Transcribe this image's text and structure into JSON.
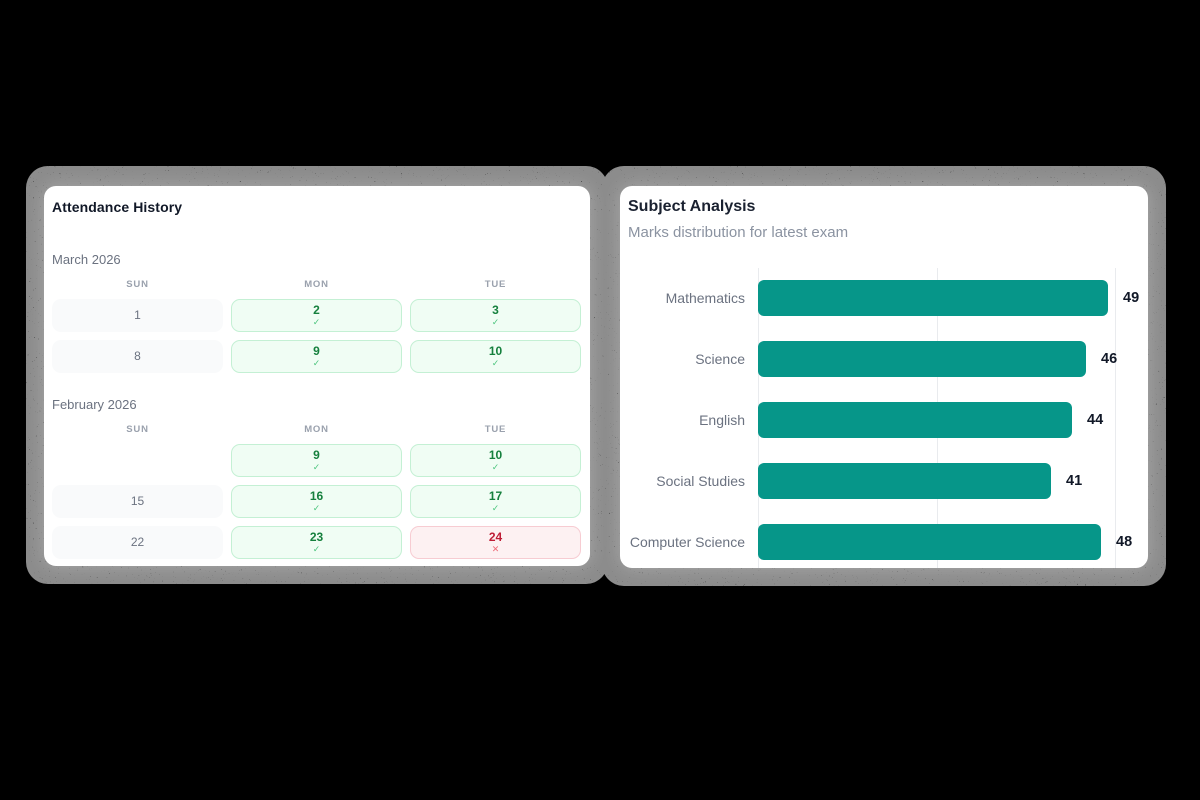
{
  "canvas": {
    "background": "#000000"
  },
  "attendance": {
    "title": "Attendance History",
    "day_headers": [
      "SUN",
      "MON",
      "TUE"
    ],
    "status_icons": {
      "present": "✓",
      "absent": "✕"
    },
    "months": [
      {
        "label": "March 2026",
        "rows": [
          [
            {
              "day": "1",
              "status": "off"
            },
            {
              "day": "2",
              "status": "present"
            },
            {
              "day": "3",
              "status": "present"
            }
          ],
          [
            {
              "day": "8",
              "status": "off"
            },
            {
              "day": "9",
              "status": "present"
            },
            {
              "day": "10",
              "status": "present"
            }
          ]
        ]
      },
      {
        "label": "February 2026",
        "rows": [
          [
            {
              "day": "",
              "status": "empty"
            },
            {
              "day": "9",
              "status": "present"
            },
            {
              "day": "10",
              "status": "present"
            }
          ],
          [
            {
              "day": "15",
              "status": "off"
            },
            {
              "day": "16",
              "status": "present"
            },
            {
              "day": "17",
              "status": "present"
            }
          ],
          [
            {
              "day": "22",
              "status": "off"
            },
            {
              "day": "23",
              "status": "present"
            },
            {
              "day": "24",
              "status": "absent"
            }
          ]
        ]
      }
    ],
    "colors": {
      "off_bg": "#f9fafb",
      "off_text": "#6b7280",
      "present_bg": "#f0fdf4",
      "present_border": "#c4f0d4",
      "present_text": "#15803d",
      "present_check": "#4ec57f",
      "absent_bg": "#fdf1f2",
      "absent_border": "#f7ccd2",
      "absent_text": "#bf1d36",
      "absent_mark": "#ee6a77"
    }
  },
  "subjects": {
    "title": "Subject Analysis",
    "subtitle": "Marks distribution for latest exam"
  },
  "chart_data": {
    "type": "bar",
    "orientation": "horizontal",
    "title": "Subject Analysis",
    "subtitle": "Marks distribution for latest exam",
    "categories": [
      "Mathematics",
      "Science",
      "English",
      "Social Studies",
      "Computer Science"
    ],
    "values": [
      49,
      46,
      44,
      41,
      48
    ],
    "xlabel": "",
    "ylabel": "",
    "xlim": [
      0,
      50
    ],
    "gridline_values": [
      0,
      25,
      50
    ],
    "grid": true,
    "legend": false,
    "value_labels_shown": true,
    "bar_color": "#069689",
    "category_label_color": "#6b7280",
    "value_label_color": "#111827"
  }
}
